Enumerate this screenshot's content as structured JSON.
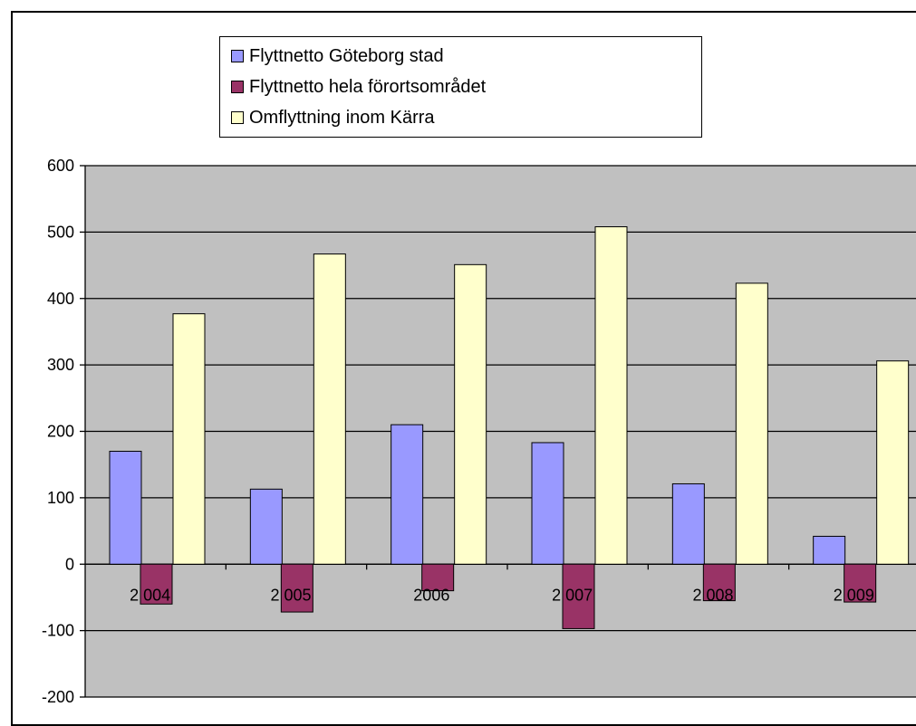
{
  "chart_data": {
    "type": "bar",
    "categories": [
      "2 004",
      "2 005",
      "2006",
      "2 007",
      "2 008",
      "2 009"
    ],
    "series": [
      {
        "name": "Flyttnetto Göteborg stad",
        "color": "#9999ff",
        "values": [
          170,
          113,
          210,
          183,
          121,
          42
        ]
      },
      {
        "name": "Flyttnetto hela förortsområdet",
        "color": "#993366",
        "values": [
          -60,
          -72,
          -40,
          -97,
          -55,
          -57
        ]
      },
      {
        "name": "Omflyttning inom Kärra",
        "color": "#ffffcc",
        "values": [
          377,
          467,
          451,
          508,
          423,
          306
        ]
      }
    ],
    "ylim": [
      -200,
      600
    ],
    "yticks": [
      600,
      500,
      400,
      300,
      200,
      100,
      0,
      -100,
      -200
    ],
    "ytick_labels": [
      "600",
      "500",
      "400",
      "300",
      "200",
      "100",
      "0",
      "-100",
      "-200"
    ],
    "plot_background": "#c0c0c0",
    "grid": true,
    "legend_position": "top"
  }
}
